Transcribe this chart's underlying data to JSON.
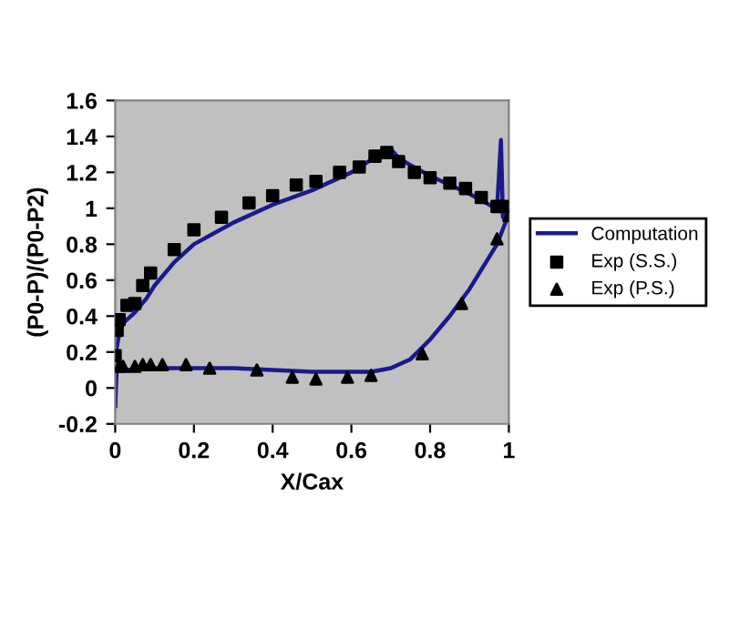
{
  "chart_data": {
    "type": "line",
    "xlabel": "X/Cax",
    "ylabel": "(P0-P)/(P0-P2)",
    "xlim": [
      0,
      1
    ],
    "xticks": [
      0,
      0.2,
      0.4,
      0.6,
      0.8,
      1
    ],
    "ylim": [
      -0.2,
      1.6
    ],
    "yticks": [
      -0.2,
      0,
      0.2,
      0.4,
      0.6,
      0.8,
      1,
      1.2,
      1.4,
      1.6
    ],
    "grid": false,
    "legend": "right",
    "series": [
      {
        "name": "Computation",
        "color": "#1a1a8c",
        "marker": "none",
        "line_style": "solid",
        "x": [
          0.0,
          0.002,
          0.01,
          0.02,
          0.05,
          0.08,
          0.1,
          0.15,
          0.2,
          0.3,
          0.4,
          0.5,
          0.6,
          0.65,
          0.68,
          0.7,
          0.72,
          0.75,
          0.8,
          0.85,
          0.9,
          0.95,
          0.97,
          0.98,
          0.985,
          0.99,
          1.0
        ],
        "values": [
          -0.1,
          0.2,
          0.3,
          0.36,
          0.42,
          0.5,
          0.57,
          0.7,
          0.8,
          0.92,
          1.02,
          1.1,
          1.2,
          1.27,
          1.32,
          1.33,
          1.28,
          1.24,
          1.18,
          1.13,
          1.08,
          1.02,
          1.0,
          1.38,
          0.95,
          1.0,
          0.97
        ]
      },
      {
        "color": "#1a1a8c",
        "marker": "none",
        "line_style": "solid",
        "x": [
          0.0,
          0.005,
          0.01,
          0.03,
          0.1,
          0.2,
          0.3,
          0.4,
          0.5,
          0.65,
          0.7,
          0.75,
          0.8,
          0.85,
          0.9,
          0.97,
          1.0
        ],
        "values": [
          -0.1,
          0.15,
          0.1,
          0.1,
          0.11,
          0.11,
          0.11,
          0.1,
          0.09,
          0.09,
          0.11,
          0.16,
          0.27,
          0.4,
          0.55,
          0.8,
          0.97
        ]
      },
      {
        "name": "Exp (S.S.)",
        "type": "scatter",
        "color": "#000000",
        "marker": "square",
        "x": [
          0.0,
          0.005,
          0.01,
          0.03,
          0.05,
          0.07,
          0.09,
          0.15,
          0.2,
          0.27,
          0.34,
          0.4,
          0.46,
          0.51,
          0.57,
          0.62,
          0.66,
          0.69,
          0.72,
          0.76,
          0.8,
          0.85,
          0.89,
          0.93,
          0.97,
          0.99
        ],
        "values": [
          0.18,
          0.32,
          0.38,
          0.46,
          0.47,
          0.57,
          0.64,
          0.77,
          0.88,
          0.95,
          1.03,
          1.07,
          1.13,
          1.15,
          1.2,
          1.23,
          1.29,
          1.31,
          1.26,
          1.2,
          1.17,
          1.14,
          1.11,
          1.06,
          1.01,
          1.01
        ]
      },
      {
        "name": "Exp (P.S.)",
        "type": "scatter",
        "color": "#000000",
        "marker": "triangle",
        "x": [
          0.01,
          0.02,
          0.05,
          0.07,
          0.09,
          0.12,
          0.18,
          0.24,
          0.36,
          0.45,
          0.51,
          0.59,
          0.65,
          0.78,
          0.88,
          0.97,
          1.0
        ],
        "values": [
          0.12,
          0.12,
          0.12,
          0.13,
          0.13,
          0.13,
          0.13,
          0.11,
          0.1,
          0.06,
          0.05,
          0.06,
          0.07,
          0.19,
          0.47,
          0.83,
          0.96
        ]
      }
    ]
  }
}
